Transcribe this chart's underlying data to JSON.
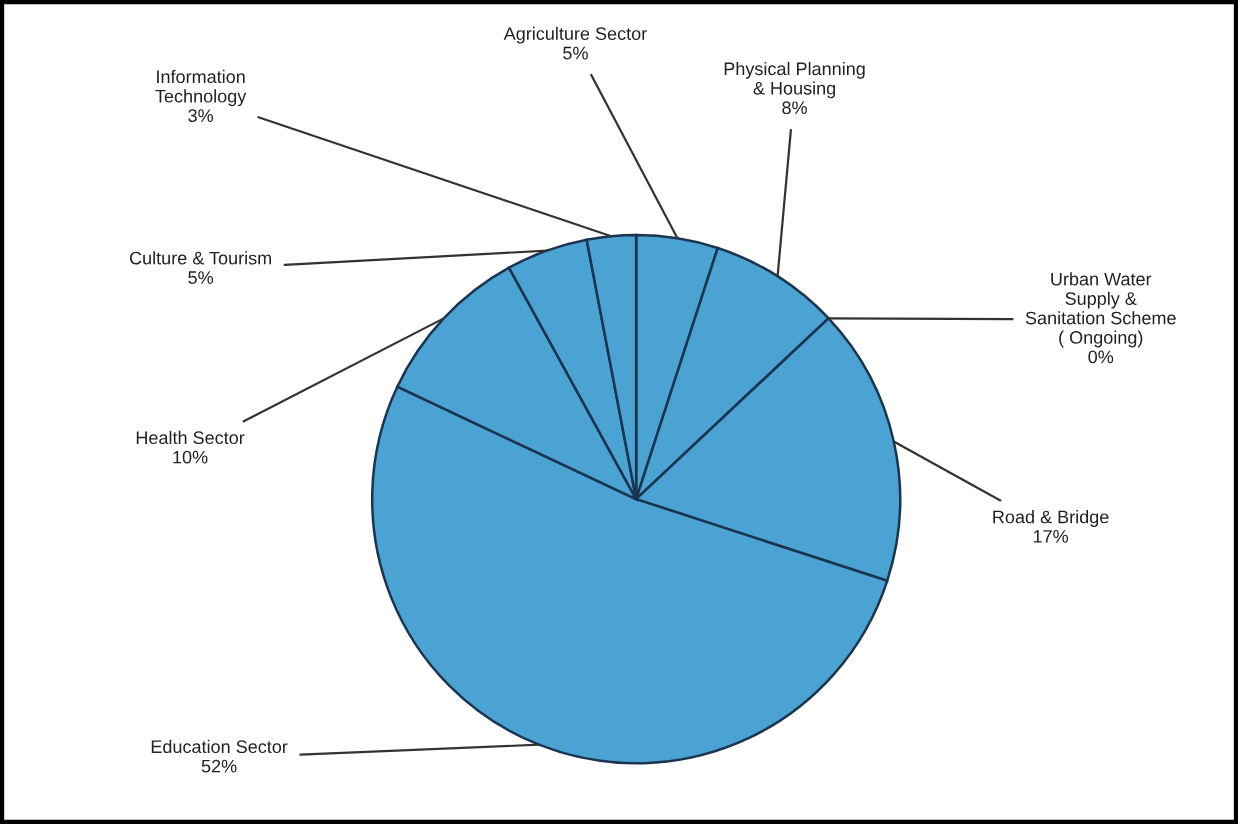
{
  "chart_data": {
    "type": "pie",
    "categories": [
      "Agriculture Sector",
      "Physical Planning\n& Housing",
      "Urban Water\nSupply &\nSanitation Scheme\n( Ongoing)",
      "Road & Bridge",
      "Education Sector",
      "Health Sector",
      "Culture & Tourism",
      "Information\nTechnology"
    ],
    "values": [
      5,
      8,
      0,
      17,
      52,
      10,
      5,
      3
    ],
    "value_labels": [
      "5%",
      "8%",
      "0%",
      "17%",
      "52%",
      "10%",
      "5%",
      "3%"
    ],
    "colors": [
      "#4ba3d3",
      "#4ba3d3",
      "#4ba3d3",
      "#4ba3d3",
      "#4ba3d3",
      "#4ba3d3",
      "#4ba3d3",
      "#4ba3d3"
    ]
  }
}
